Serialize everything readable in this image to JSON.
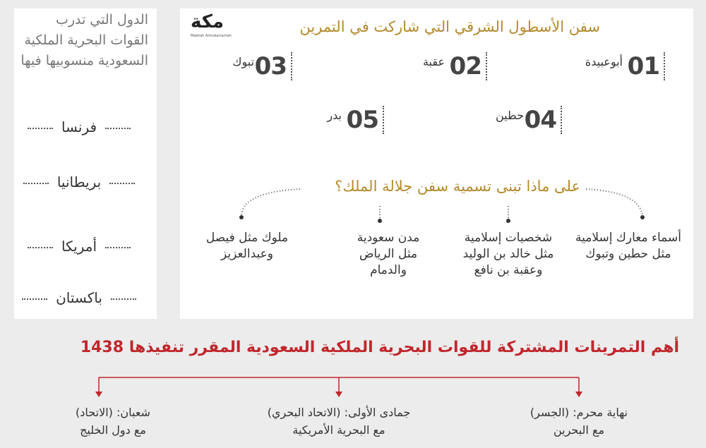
{
  "left_panel": {
    "title": "الدول التي تدرب القوات البحرية الملكية السعودية منسوبيها فيها",
    "countries": [
      "فرنسا",
      "بريطانيا",
      "أمريكا",
      "باكستان"
    ]
  },
  "logo": {
    "name": "مكة",
    "caption": "Makkah Almukarramah"
  },
  "ships": {
    "title": "سفن الأسطول الشرقي التي شاركت في التمرين",
    "items": [
      {
        "number": "01",
        "name": "أبوعبيدة"
      },
      {
        "number": "02",
        "name": "عقبة"
      },
      {
        "number": "03",
        "name": "تبوك"
      },
      {
        "number": "04",
        "name": "حطين"
      },
      {
        "number": "05",
        "name": "بدر"
      }
    ]
  },
  "naming": {
    "title": "على ماذا تبنى تسمية سفن جلالة الملك؟",
    "items": [
      "أسماء معارك إسلامية مثل حطين وتبوك",
      "شخصيات إسلامية مثل خالد بن الوليد وعقبة بن نافع",
      "مدن سعودية مثل الرياض والدمام",
      "ملوك مثل فيصل وعبدالعزيز"
    ]
  },
  "exercises": {
    "title": "أهم التمرينات المشتركة للقوات البحرية الملكية السعودية المقرر تنفيذها 1438",
    "items": [
      {
        "when": "نهاية محرم: (الجسر)",
        "with": "مع البحرين"
      },
      {
        "when": "جمادى الأولى: (الاتحاد البحري)",
        "with": "مع البحرية الأمريكية"
      },
      {
        "when": "شعبان: (الاتحاد)",
        "with": "مع دول الخليج"
      }
    ]
  }
}
